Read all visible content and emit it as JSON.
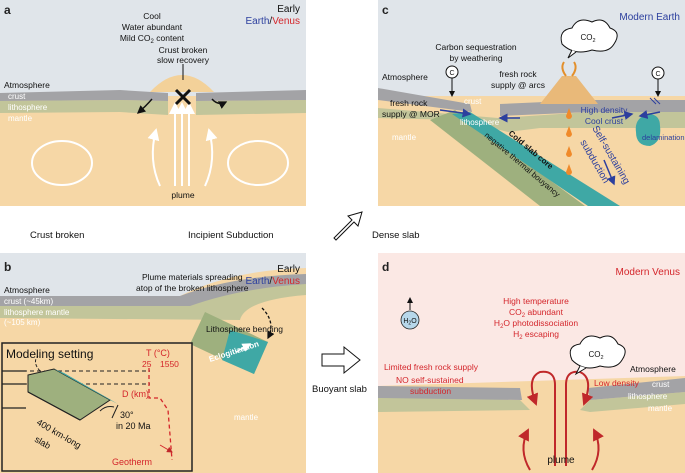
{
  "panel_a": {
    "letter": "a",
    "era_early": "Early",
    "era_earth": "Earth",
    "era_slash": "/",
    "era_venus": "Venus",
    "cond1": "Cool",
    "cond2": "Water abundant",
    "cond3": "Mild CO",
    "cond3_sub": "2",
    "cond3_tail": " content",
    "atmosphere": "Atmosphere",
    "crust": "crust",
    "lithosphere": "lithosphere",
    "mantle": "mantle",
    "broken1": "Crust broken",
    "broken2": "slow recovery",
    "plume": "plume"
  },
  "row_labels": {
    "crust_broken": "Crust broken",
    "incipient": "Incipient Subduction",
    "dense_slab": "Dense slab",
    "buoyant_slab": "Buoyant slab"
  },
  "panel_b": {
    "letter": "b",
    "era_early": "Early",
    "era_earth": "Earth",
    "era_slash": "/",
    "era_venus": "Venus",
    "plume_spread1": "Plume materials spreading",
    "plume_spread2": "atop of the broken lithosphere",
    "atmosphere": "Atmosphere",
    "crust": "crust (~45km)",
    "lith1": "lithosphere mantle",
    "lith2": "(~105 km)",
    "bending": "Lithosphere bending",
    "eclog": "Eclogitization",
    "mantle": "mantle",
    "modeling": "Modeling setting",
    "temp": "T (°C)",
    "t25": "25",
    "t1550": "1550",
    "depth": "D (km)",
    "angle": "30°",
    "age": "in 20 Ma",
    "slab1": "400 km-long",
    "slab2": "slab",
    "geotherm": "Geotherm"
  },
  "panel_c": {
    "letter": "c",
    "title": "Modern Earth",
    "carbon1": "Carbon sequestration",
    "carbon2": "by weathering",
    "fresh_arc1": "fresh rock",
    "fresh_arc2": "supply @ arcs",
    "co2": "CO",
    "co2_sub": "2",
    "c_symbol": "C",
    "atmosphere": "Atmosphere",
    "crust": "crust",
    "fresh_mor1": "fresh rock",
    "fresh_mor2": "supply @ MOR",
    "lithosphere": "lithosphere",
    "mantle": "mantle",
    "high_density": "High density",
    "cool_crust": "Cool crust",
    "delamination": "delamination",
    "cold_slab1": "Cold slab core",
    "cold_slab2": "negative thermal bouyancy",
    "self1": "Self-sustaining",
    "self2": "subduction"
  },
  "panel_d": {
    "letter": "d",
    "title": "Modern Venus",
    "c1": "High temperature",
    "c2": "CO",
    "c2_sub": "2",
    "c2_tail": " abundant",
    "c3": "H",
    "c3_sub": "2",
    "c3_tail": "O photodissociation",
    "c4": "H",
    "c4_sub": "2",
    "c4_tail": " escaping",
    "h2o": "H",
    "h2o_sub": "2",
    "h2o_tail": "O",
    "co2": "CO",
    "co2_sub": "2",
    "atmosphere": "Atmosphere",
    "crust": "crust",
    "lithosphere": "lithosphere",
    "mantle": "mantle",
    "limited": "Limited fresh rock supply",
    "no_self1": "NO self-sustained",
    "no_self2": "subduction",
    "low_density": "Low density",
    "plume": "plume"
  },
  "colors": {
    "sky": "#dde3e8",
    "mantle": "#f6d7a6",
    "crust": "#a3a3a6",
    "lithosphere": "#c2c59a",
    "slab_green": "#9eb07e",
    "slab_teal": "#3fa8a5",
    "earth_blue": "#2c3f9e",
    "venus_red": "#d4262b"
  }
}
